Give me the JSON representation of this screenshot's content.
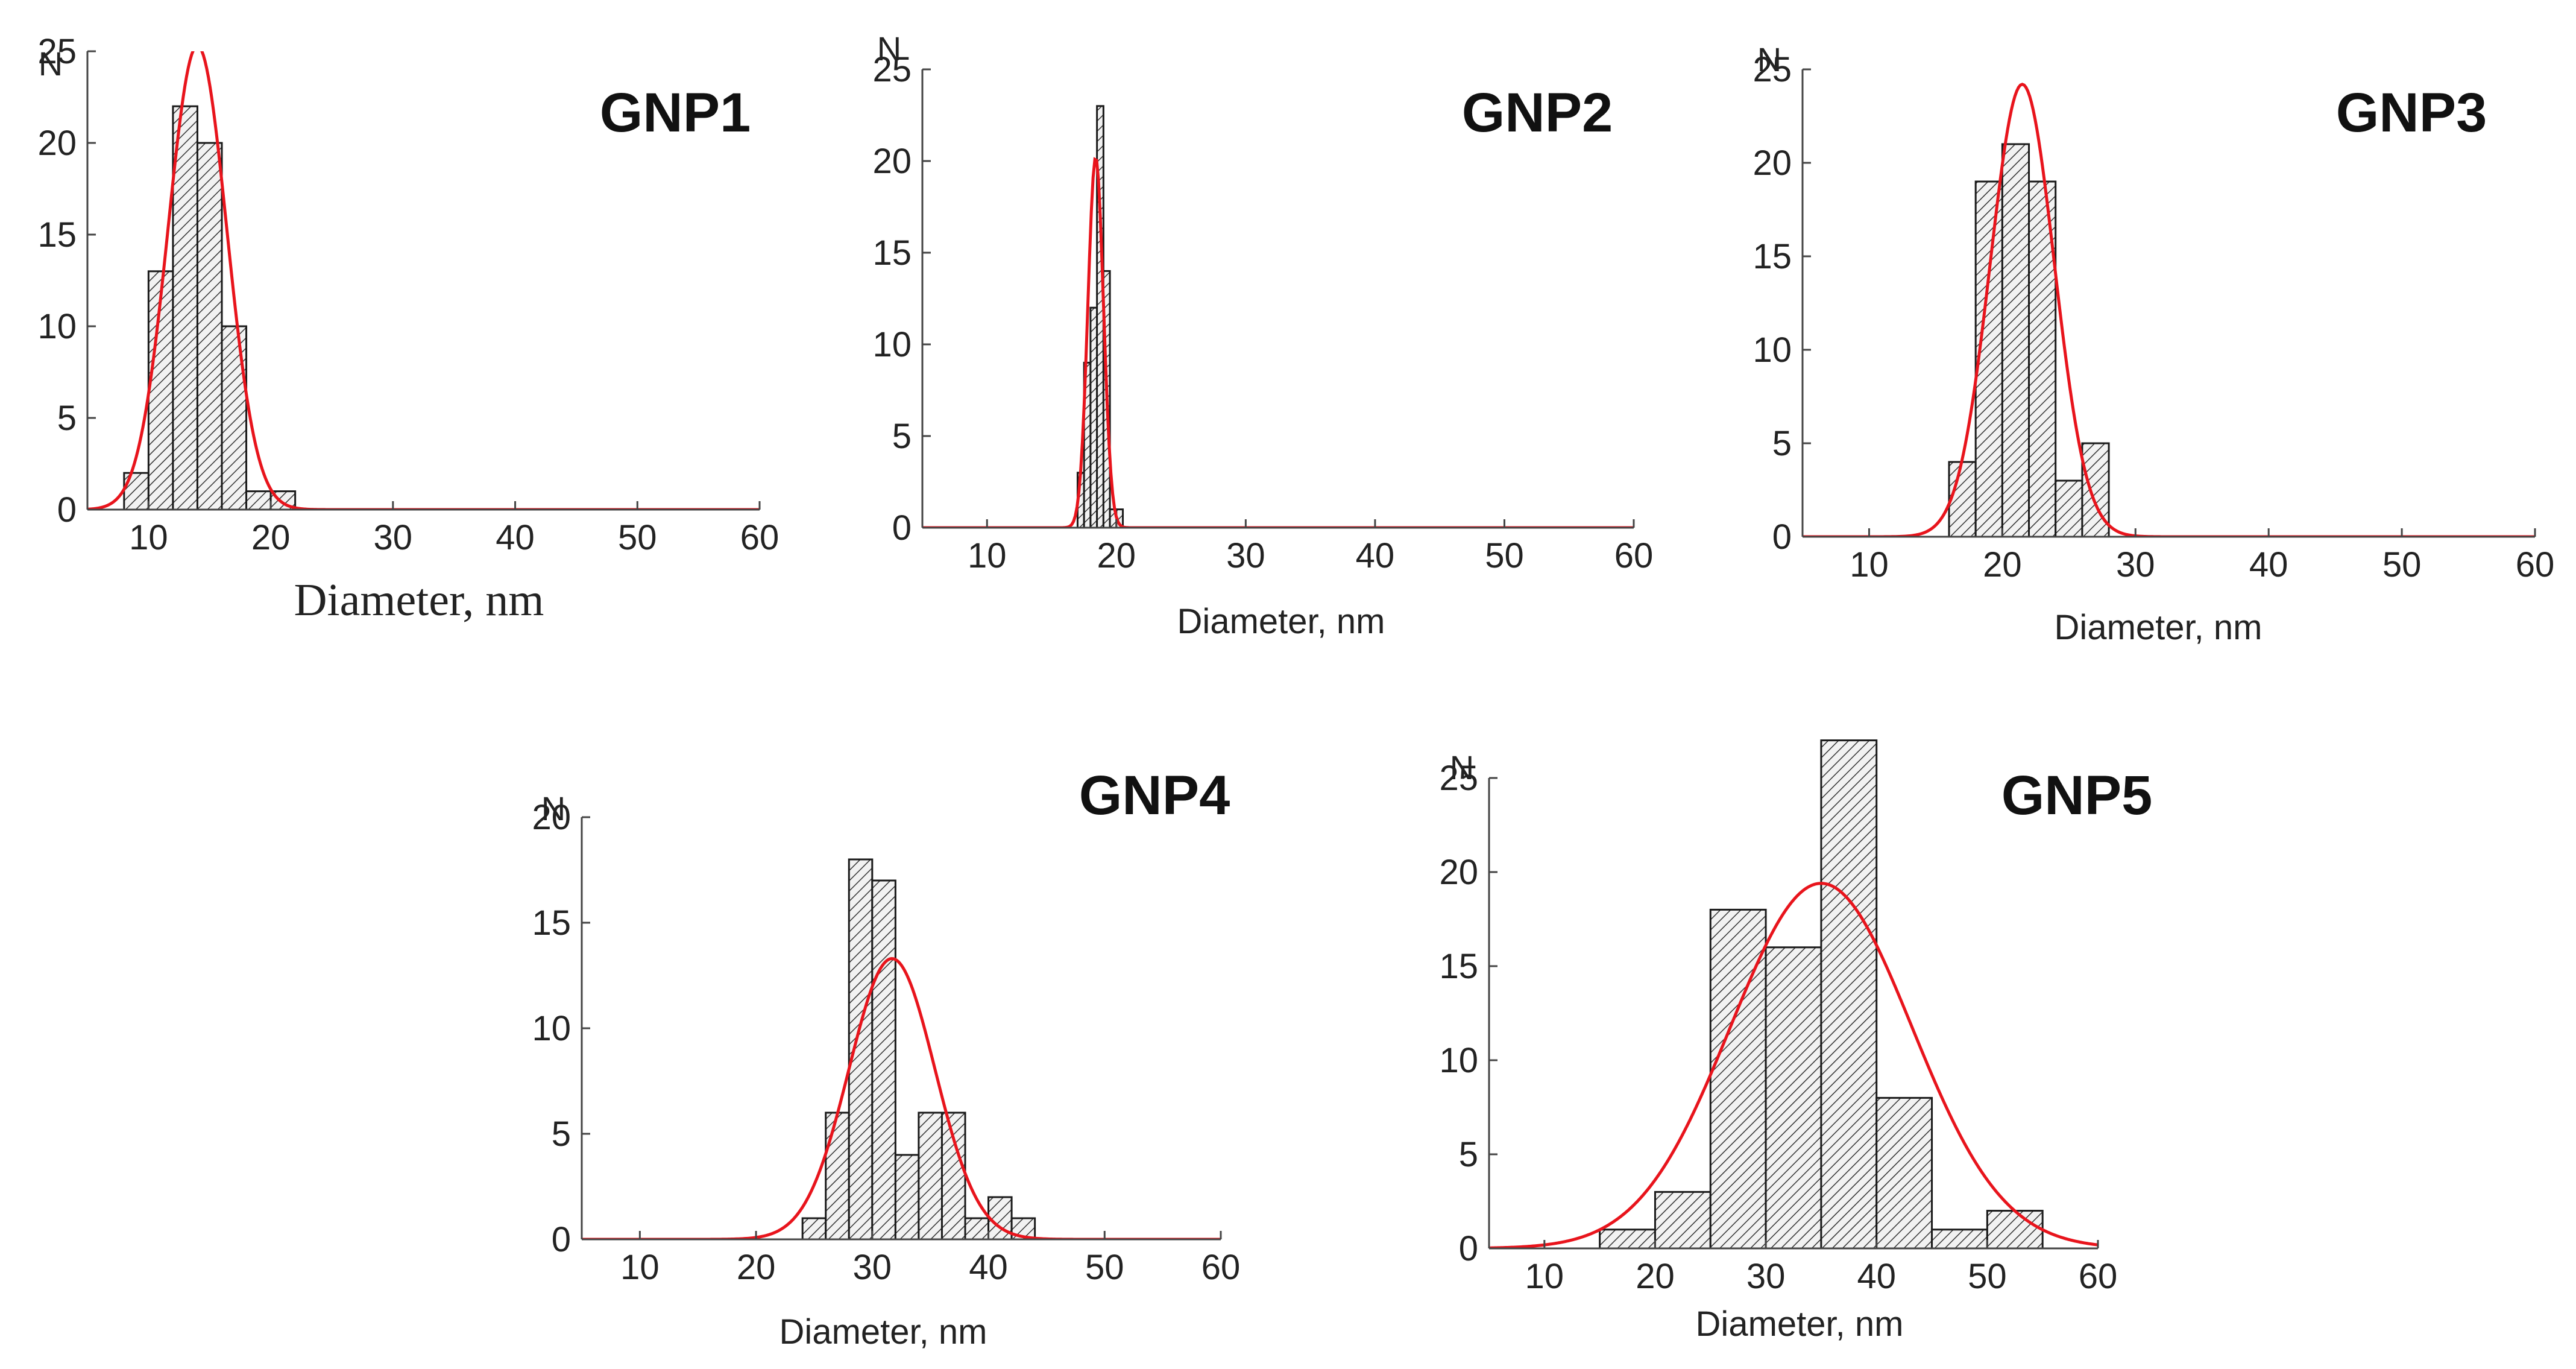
{
  "colors": {
    "fit": "#e8141c",
    "bar_edge": "#1a1a1a",
    "hatch": "#333333",
    "axis": "#444444"
  },
  "chart_data": [
    {
      "type": "bar",
      "title": "GNP1",
      "xlabel": "Diameter, nm",
      "ylabel": "N",
      "xlim": [
        5,
        60
      ],
      "ylim": [
        0,
        25
      ],
      "xticks": [
        10,
        20,
        30,
        40,
        50,
        60
      ],
      "yticks": [
        0,
        5,
        10,
        15,
        20,
        25
      ],
      "bin_edges": [
        8,
        10,
        12,
        14,
        16,
        18,
        20,
        22
      ],
      "values": [
        2,
        13,
        22,
        20,
        10,
        1,
        1
      ],
      "fit": {
        "type": "gaussian",
        "mean": 14,
        "sigma": 2.4,
        "peak": 25.3
      }
    },
    {
      "type": "bar",
      "title": "GNP2",
      "xlabel": "Diameter, nm",
      "ylabel": "N",
      "xlim": [
        5,
        60
      ],
      "ylim": [
        0,
        25
      ],
      "xticks": [
        10,
        20,
        30,
        40,
        50,
        60
      ],
      "yticks": [
        0,
        5,
        10,
        15,
        20,
        25
      ],
      "bin_edges": [
        17,
        17.5,
        18,
        18.5,
        19,
        19.5,
        20,
        20.5
      ],
      "values": [
        3,
        9,
        12,
        23,
        14,
        1,
        1
      ],
      "fit": {
        "type": "gaussian",
        "mean": 18.4,
        "sigma": 0.6,
        "peak": 20.2
      }
    },
    {
      "type": "bar",
      "title": "GNP3",
      "xlabel": "Diameter, nm",
      "ylabel": "N",
      "xlim": [
        5,
        60
      ],
      "ylim": [
        0,
        25
      ],
      "xticks": [
        10,
        20,
        30,
        40,
        50,
        60
      ],
      "yticks": [
        0,
        5,
        10,
        15,
        20,
        25
      ],
      "bin_edges": [
        16,
        18,
        20,
        22,
        24,
        26,
        28
      ],
      "values": [
        4,
        19,
        21,
        19,
        3,
        5
      ],
      "fit": {
        "type": "gaussian",
        "mean": 21.5,
        "sigma": 2.4,
        "peak": 24.2
      }
    },
    {
      "type": "bar",
      "title": "GNP4",
      "xlabel": "Diameter, nm",
      "ylabel": "N",
      "xlim": [
        5,
        60
      ],
      "ylim": [
        0,
        20
      ],
      "xticks": [
        10,
        20,
        30,
        40,
        50,
        60
      ],
      "yticks": [
        0,
        5,
        10,
        15,
        20
      ],
      "bin_edges": [
        24,
        26,
        28,
        30,
        32,
        34,
        36,
        38,
        40,
        42,
        44
      ],
      "values": [
        1,
        6,
        18,
        17,
        4,
        6,
        6,
        1,
        2,
        1
      ],
      "fit": {
        "type": "gaussian",
        "mean": 31.7,
        "sigma": 3.7,
        "peak": 13.3
      }
    },
    {
      "type": "bar",
      "title": "GNP5",
      "xlabel": "Diameter, nm",
      "ylabel": "N",
      "xlim": [
        5,
        60
      ],
      "ylim": [
        0,
        25
      ],
      "xticks": [
        10,
        20,
        30,
        40,
        50,
        60
      ],
      "yticks": [
        0,
        5,
        10,
        15,
        20,
        25
      ],
      "bin_edges": [
        15,
        20,
        25,
        30,
        35,
        40,
        45,
        50,
        55
      ],
      "values": [
        1,
        3,
        18,
        16,
        27,
        8,
        1,
        2
      ],
      "fit": {
        "type": "gaussian",
        "mean": 35,
        "sigma": 8.2,
        "peak": 19.4
      }
    }
  ]
}
